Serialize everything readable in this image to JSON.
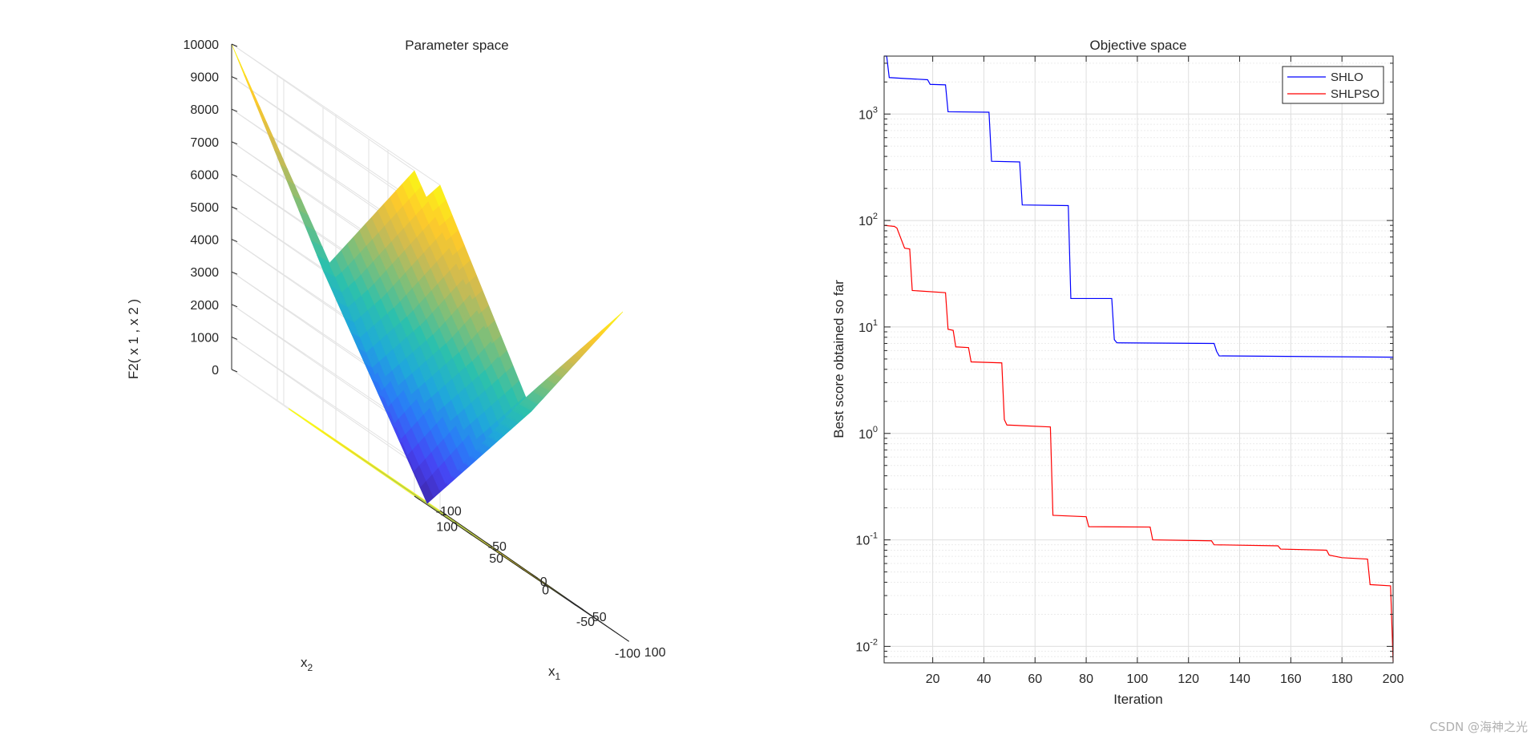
{
  "chart_data": [
    {
      "type": "surface3d",
      "title": "Parameter space",
      "xlabel": "x",
      "xlabel_sub": "1",
      "ylabel": "x",
      "ylabel_sub": "2",
      "zlabel": "F2( x 1 , x 2 )",
      "xlim": [
        -100,
        100
      ],
      "ylim": [
        -100,
        100
      ],
      "zlim": [
        0,
        10000
      ],
      "xticks": [
        -100,
        -50,
        0,
        50,
        100
      ],
      "yticks": [
        -100,
        -50,
        0,
        50,
        100
      ],
      "zticks": [
        0,
        1000,
        2000,
        3000,
        4000,
        5000,
        6000,
        7000,
        8000,
        9000,
        10000
      ],
      "grid": true,
      "colormap": [
        "#3e26a8",
        "#4743f3",
        "#2a7bf8",
        "#1fabd8",
        "#2cc0ad",
        "#7cbf7b",
        "#ceba52",
        "#feca2a",
        "#f9fb15"
      ]
    },
    {
      "type": "line",
      "title": "Objective space",
      "xlabel": "Iteration",
      "ylabel": "Best score obtained so far",
      "yscale": "log",
      "xlim": [
        1,
        200
      ],
      "ylim": [
        0.007,
        3500
      ],
      "xticks": [
        20,
        40,
        60,
        80,
        100,
        120,
        140,
        160,
        180,
        200
      ],
      "yticks": [
        {
          "value": 0.01,
          "base": "10",
          "exp": "-2"
        },
        {
          "value": 0.1,
          "base": "10",
          "exp": "-1"
        },
        {
          "value": 1,
          "base": "10",
          "exp": "0"
        },
        {
          "value": 10,
          "base": "10",
          "exp": "1"
        },
        {
          "value": 100,
          "base": "10",
          "exp": "2"
        },
        {
          "value": 1000,
          "base": "10",
          "exp": "3"
        }
      ],
      "grid": true,
      "legend_position": "top-right",
      "series": [
        {
          "name": "SHLO",
          "color": "#0000ff",
          "points": [
            [
              1,
              3500
            ],
            [
              2,
              3500
            ],
            [
              3,
              2200
            ],
            [
              10,
              2150
            ],
            [
              18,
              2100
            ],
            [
              19,
              1900
            ],
            [
              25,
              1880
            ],
            [
              26,
              1050
            ],
            [
              42,
              1040
            ],
            [
              43,
              360
            ],
            [
              54,
              355
            ],
            [
              55,
              140
            ],
            [
              73,
              138
            ],
            [
              74,
              18.5
            ],
            [
              90,
              18.5
            ],
            [
              91,
              7.6
            ],
            [
              92,
              7.1
            ],
            [
              130,
              7.0
            ],
            [
              131,
              5.9
            ],
            [
              132,
              5.35
            ],
            [
              200,
              5.2
            ]
          ]
        },
        {
          "name": "SHLPSO",
          "color": "#ff0000",
          "points": [
            [
              1,
              90
            ],
            [
              5,
              88
            ],
            [
              6,
              85
            ],
            [
              9,
              55
            ],
            [
              11,
              54
            ],
            [
              12,
              22
            ],
            [
              25,
              21
            ],
            [
              26,
              9.5
            ],
            [
              28,
              9.3
            ],
            [
              29,
              6.5
            ],
            [
              34,
              6.4
            ],
            [
              35,
              4.7
            ],
            [
              47,
              4.6
            ],
            [
              48,
              1.35
            ],
            [
              49,
              1.2
            ],
            [
              66,
              1.15
            ],
            [
              67,
              0.17
            ],
            [
              80,
              0.165
            ],
            [
              81,
              0.133
            ],
            [
              105,
              0.132
            ],
            [
              106,
              0.1
            ],
            [
              129,
              0.098
            ],
            [
              130,
              0.09
            ],
            [
              155,
              0.088
            ],
            [
              156,
              0.082
            ],
            [
              174,
              0.08
            ],
            [
              175,
              0.072
            ],
            [
              180,
              0.068
            ],
            [
              190,
              0.066
            ],
            [
              191,
              0.038
            ],
            [
              199,
              0.037
            ],
            [
              200,
              0.0072
            ]
          ]
        }
      ]
    }
  ],
  "watermark": "CSDN @海神之光"
}
